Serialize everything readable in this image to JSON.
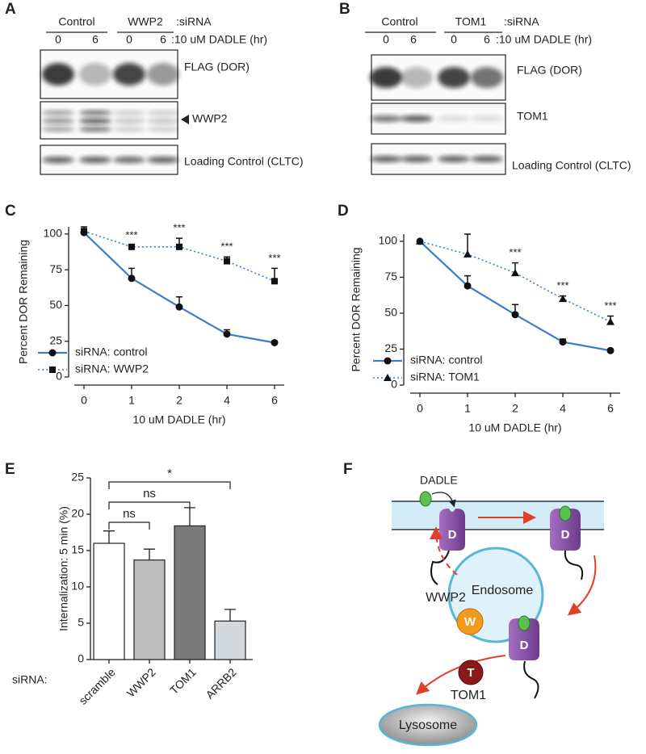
{
  "panel_labels": [
    "A",
    "B",
    "C",
    "D",
    "E",
    "F"
  ],
  "blots": [
    {
      "conditions": [
        "Control",
        "WWP2"
      ],
      "condition_label": ":siRNA",
      "times": [
        "0",
        "6",
        "0",
        "6"
      ],
      "time_label": ":10 uM DADLE (hr)",
      "bands": [
        "FLAG (DOR)",
        "WWP2",
        "Loading Control (CLTC)"
      ]
    },
    {
      "conditions": [
        "Control",
        "TOM1"
      ],
      "condition_label": ":siRNA",
      "times": [
        "0",
        "6",
        "0",
        "6"
      ],
      "time_label": ":10 uM DADLE (hr)",
      "bands": [
        "FLAG (DOR)",
        "TOM1",
        "Loading Control (CLTC)"
      ]
    }
  ],
  "chart_data": [
    {
      "type": "line",
      "x_label": "10 uM DADLE (hr)",
      "y_label": "Percent DOR Remaining",
      "categories": [
        "0",
        "1",
        "2",
        "4",
        "6"
      ],
      "ylim": [
        0,
        105
      ],
      "yticks": [
        0,
        25,
        50,
        75,
        100
      ],
      "legend": "lower left",
      "series": [
        {
          "name": "siRNA: control",
          "color": "#3a7dc9",
          "linestyle": "solid",
          "marker": "circle",
          "values": [
            101,
            69,
            49,
            30,
            24
          ],
          "errors": [
            2,
            7,
            7,
            3,
            1
          ]
        },
        {
          "name": "siRNA: WWP2",
          "color": "#3a7dc9",
          "linestyle": "dotted",
          "marker": "square",
          "values": [
            102,
            91,
            91,
            81,
            67
          ],
          "errors": [
            3,
            1,
            6,
            3,
            9
          ],
          "significance": [
            null,
            "***",
            "***",
            "***",
            "***"
          ]
        }
      ]
    },
    {
      "type": "line",
      "x_label": "10 uM DADLE (hr)",
      "y_label": "Percent DOR Remaining",
      "categories": [
        "0",
        "1",
        "2",
        "4",
        "6"
      ],
      "ylim": [
        0,
        105
      ],
      "yticks": [
        0,
        25,
        50,
        75,
        100
      ],
      "legend": "lower left",
      "series": [
        {
          "name": "siRNA: control",
          "color": "#3a7dc9",
          "linestyle": "solid",
          "marker": "circle",
          "values": [
            100,
            69,
            49,
            30,
            24
          ],
          "errors": [
            0,
            7,
            7,
            2,
            1
          ]
        },
        {
          "name": "siRNA: TOM1",
          "color": "#3a7dc9",
          "linestyle": "dotted",
          "marker": "triangle",
          "values": [
            100,
            91,
            78,
            60,
            44
          ],
          "errors": [
            0,
            14,
            7,
            2,
            4
          ],
          "significance": [
            null,
            null,
            "***",
            "***",
            "***"
          ]
        }
      ]
    },
    {
      "type": "bar",
      "y_label": "Internalization: 5 min (%)",
      "x_label": "siRNA:",
      "categories": [
        "scramble",
        "WWP2",
        "TOM1",
        "ARRB2"
      ],
      "values": [
        16,
        13.7,
        18.4,
        5.3
      ],
      "errors": [
        1.7,
        1.5,
        2.5,
        1.6
      ],
      "colors": [
        "#ffffff",
        "#bdbdbd",
        "#7a7a7a",
        "#d3d8dc"
      ],
      "ylim": [
        0,
        25
      ],
      "yticks": [
        0,
        5,
        10,
        15,
        20,
        25
      ],
      "comparisons": [
        {
          "pair": [
            "scramble",
            "WWP2"
          ],
          "label": "ns"
        },
        {
          "pair": [
            "scramble",
            "TOM1"
          ],
          "label": "ns"
        },
        {
          "pair": [
            "scramble",
            "ARRB2"
          ],
          "label": "*"
        }
      ]
    }
  ],
  "diagram": {
    "ligand": "DADLE",
    "receptor": "D",
    "endosome": "Endosome",
    "wwp2": {
      "name": "WWP2",
      "symbol": "W"
    },
    "tom1": {
      "name": "TOM1",
      "symbol": "T"
    },
    "lysosome": "Lysosome"
  }
}
